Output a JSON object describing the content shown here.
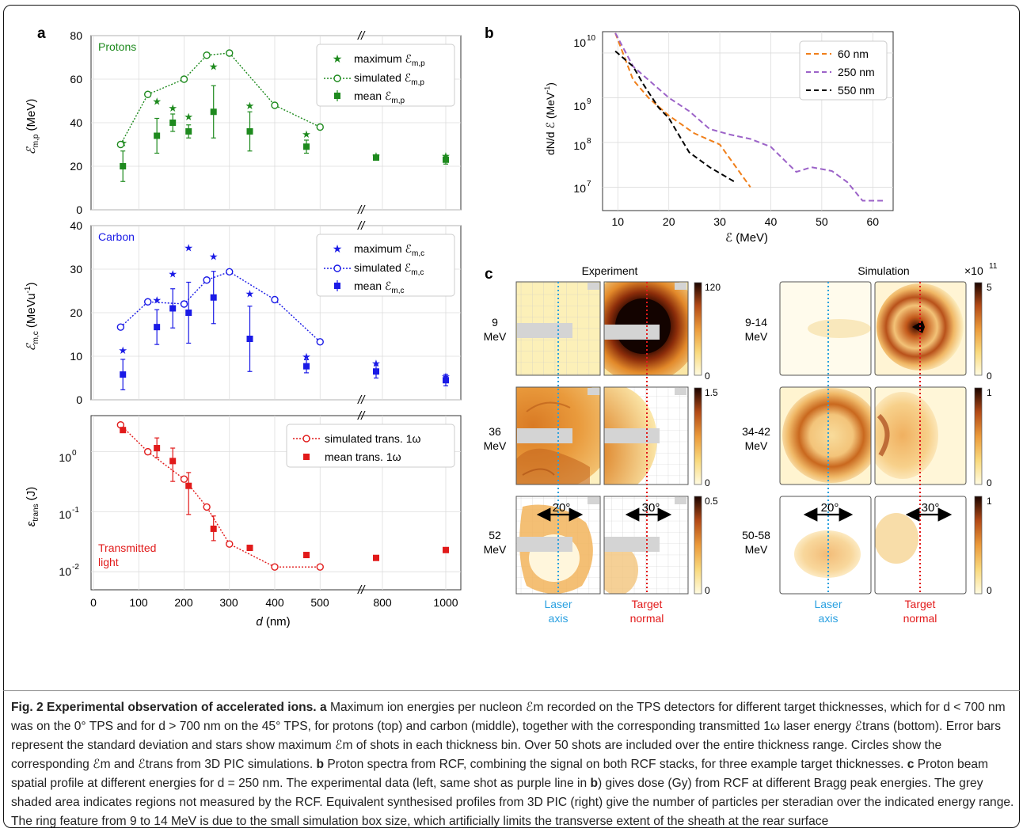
{
  "panels": {
    "a": "a",
    "b": "b",
    "c": "c"
  },
  "axes_a": {
    "break_mark": "//",
    "x_ticks": [
      "0",
      "100",
      "200",
      "300",
      "400",
      "500",
      "800",
      "1000"
    ],
    "xlabel_d": "d",
    "xlabel_unit": " (nm)",
    "top": {
      "ylabel": "ℰ",
      "ylabel_sub": "m,p",
      "ylabel_unit": " (MeV)",
      "ticks": [
        "0",
        "20",
        "40",
        "60",
        "80"
      ],
      "label": "Protons",
      "legend": [
        "maximum ℰ",
        "simulated ℰ",
        "mean ℰ"
      ],
      "legend_sub": "m,p"
    },
    "mid": {
      "ylabel": "ℰ",
      "ylabel_sub": "m,c",
      "ylabel_unit": " (MeVu",
      "ylabel_unit2": ")",
      "ticks": [
        "0",
        "10",
        "20",
        "30",
        "40"
      ],
      "label": "Carbon",
      "legend": [
        "maximum ℰ",
        "simulated ℰ",
        "mean ℰ"
      ],
      "legend_sub": "m,c"
    },
    "bot": {
      "ylabel": "ε",
      "ylabel_sub": "trans",
      "ylabel_unit": " (J)",
      "ticks": [
        "10",
        "10",
        "10",
        "10"
      ],
      "tick_exp": [
        "0",
        "-1",
        "-2"
      ],
      "label": [
        "Transmitted",
        "light"
      ],
      "legend": [
        "simulated trans. 1ω",
        "mean trans. 1ω"
      ]
    }
  },
  "axes_b": {
    "xlabel": "ℰ (MeV)",
    "ylabel": "dN/d ℰ (MeV",
    "ylabel_tail": ")",
    "x_ticks": [
      "10",
      "20",
      "30",
      "40",
      "50",
      "60"
    ],
    "y_ticks_base": "10",
    "y_ticks_exp": [
      "10",
      "9",
      "8",
      "7"
    ],
    "legend": [
      "60 nm",
      "250 nm",
      "550 nm"
    ]
  },
  "panel_c": {
    "col_experiment": "Experiment",
    "col_simulation": "Simulation",
    "exp_rows": [
      [
        "9",
        "MeV"
      ],
      [
        "36",
        "MeV"
      ],
      [
        "52",
        "MeV"
      ]
    ],
    "sim_rows": [
      [
        "9-14",
        "MeV"
      ],
      [
        "34-42",
        "MeV"
      ],
      [
        "50-58",
        "MeV"
      ]
    ],
    "exp_cbar": [
      [
        "120",
        "0"
      ],
      [
        "1.5",
        "0"
      ],
      [
        "0.5",
        "0"
      ]
    ],
    "sim_cbar": [
      [
        "5",
        "0"
      ],
      [
        "1",
        "0"
      ],
      [
        "1",
        "0"
      ]
    ],
    "sim_scale": "×10",
    "sim_scale_exp": "11",
    "angle_left": "20°",
    "angle_right": "30°",
    "laser_axis": [
      "Laser",
      "axis"
    ],
    "target_normal": [
      "Target",
      "normal"
    ]
  },
  "chart_data": [
    {
      "type": "scatter",
      "title": "Protons",
      "xlabel": "d (nm)",
      "ylabel": "ℰm,p (MeV)",
      "ylim": [
        0,
        80
      ],
      "series": [
        {
          "name": "maximum ℰm,p",
          "x": [
            65,
            140,
            175,
            210,
            265,
            345,
            560,
            780,
            1000
          ],
          "y": [
            31,
            50,
            47,
            43,
            66,
            48,
            35,
            25,
            25
          ]
        },
        {
          "name": "simulated ℰm,p",
          "x": [
            60,
            120,
            200,
            250,
            300,
            400,
            500
          ],
          "y": [
            30,
            53,
            60,
            71,
            72,
            48,
            38
          ]
        },
        {
          "name": "mean ℰm,p",
          "x": [
            65,
            140,
            175,
            210,
            265,
            345,
            560,
            780,
            1000
          ],
          "y": [
            20,
            34,
            40,
            36,
            45,
            36,
            29,
            24,
            23
          ],
          "err": [
            7,
            8,
            4,
            3,
            12,
            9,
            3,
            1,
            2
          ]
        }
      ]
    },
    {
      "type": "scatter",
      "title": "Carbon",
      "xlabel": "d (nm)",
      "ylabel": "ℰm,c (MeVu-1)",
      "ylim": [
        0,
        40
      ],
      "series": [
        {
          "name": "maximum ℰm,c",
          "x": [
            65,
            140,
            175,
            210,
            265,
            345,
            560,
            780,
            1000
          ],
          "y": [
            11.5,
            23,
            29,
            35,
            33,
            24.5,
            10,
            8.5,
            5.5
          ]
        },
        {
          "name": "simulated ℰm,c",
          "x": [
            60,
            120,
            200,
            250,
            300,
            400,
            500
          ],
          "y": [
            16.7,
            22.5,
            22,
            27.5,
            29.4,
            23,
            13.3
          ]
        },
        {
          "name": "mean ℰm,c",
          "x": [
            65,
            140,
            175,
            210,
            265,
            345,
            560,
            780,
            1000
          ],
          "y": [
            5.8,
            16.7,
            21,
            20,
            23.5,
            14,
            7.7,
            6.5,
            4.5
          ],
          "err": [
            3.5,
            4,
            4.5,
            7,
            6,
            7.5,
            1.5,
            1.5,
            1.3
          ]
        }
      ]
    },
    {
      "type": "scatter",
      "title": "Transmitted light",
      "xlabel": "d (nm)",
      "ylabel": "εtrans (J)",
      "yscale": "log",
      "ylim": [
        0.005,
        4
      ],
      "series": [
        {
          "name": "simulated trans. 1ω",
          "x": [
            60,
            120,
            200,
            250,
            300,
            400,
            500
          ],
          "y": [
            2.8,
            1.0,
            0.35,
            0.12,
            0.029,
            0.012,
            0.012
          ]
        },
        {
          "name": "mean trans. 1ω",
          "x": [
            65,
            140,
            175,
            210,
            265,
            345,
            560,
            780,
            1000
          ],
          "y": [
            2.3,
            1.15,
            0.7,
            0.27,
            0.052,
            0.025,
            0.019,
            0.017,
            0.023
          ]
        }
      ]
    },
    {
      "type": "line",
      "xlabel": "ℰ (MeV)",
      "ylabel": "dN/d ℰ (MeV-1)",
      "yscale": "log",
      "xlim": [
        7,
        64
      ],
      "ylim": [
        3000000,
        30000000000
      ],
      "series": [
        {
          "name": "60 nm",
          "x": [
            9.5,
            13,
            16,
            20,
            25,
            30,
            36
          ],
          "y": [
            28000000000.0,
            2500000000.0,
            1000000000.0,
            400000000.0,
            160000000.0,
            90000000.0,
            10000000.0
          ]
        },
        {
          "name": "250 nm",
          "x": [
            9.5,
            13,
            16,
            20,
            24,
            28,
            32,
            36,
            40,
            45,
            48,
            52,
            55,
            58,
            62
          ],
          "y": [
            28000000000.0,
            5000000000.0,
            2500000000.0,
            1000000000.0,
            500000000.0,
            200000000.0,
            150000000.0,
            120000000.0,
            80000000.0,
            22000000.0,
            28000000.0,
            23000000.0,
            13000000.0,
            5000000.0,
            5000000.0
          ]
        },
        {
          "name": "550 nm",
          "x": [
            9.5,
            13,
            15,
            18,
            20,
            24,
            28,
            33
          ],
          "y": [
            11000000000.0,
            5000000000.0,
            2000000000.0,
            600000000.0,
            350000000.0,
            60000000.0,
            28000000.0,
            13000000.0
          ]
        }
      ]
    }
  ],
  "caption": {
    "title": "Fig. 2 Experimental observation of accelerated ions.",
    "a": "a",
    "text_a": " Maximum ion energies per nucleon ℰm recorded on the TPS detectors for different target thicknesses, which for d < 700 nm was on the 0° TPS and for d > 700 nm on the 45° TPS, for protons (top) and carbon (middle), together with the corresponding transmitted 1ω laser energy ℰtrans (bottom). Error bars represent the standard deviation and stars show maximum ℰm of shots in each thickness bin. Over 50 shots are included over the entire thickness range. Circles show the corresponding ℰm and ℰtrans from 3D PIC simulations. ",
    "b": "b",
    "text_b": " Proton spectra from RCF, combining the signal on both RCF stacks, for three example target thicknesses. ",
    "c": "c",
    "text_c": " Proton beam spatial profile at different energies for d = 250 nm. The experimental data (left, same shot as purple line in ",
    "b2": "b",
    "text_c2": ") gives dose (Gy) from RCF at different Bragg peak energies. The grey shaded area indicates regions not measured by the RCF. Equivalent synthesised profiles from 3D PIC (right) give the number of particles per steradian over the indicated energy range. The ring feature from 9 to 14 MeV is due to the small simulation box size, which artificially limits the transverse extent of the sheath at the rear surface"
  }
}
